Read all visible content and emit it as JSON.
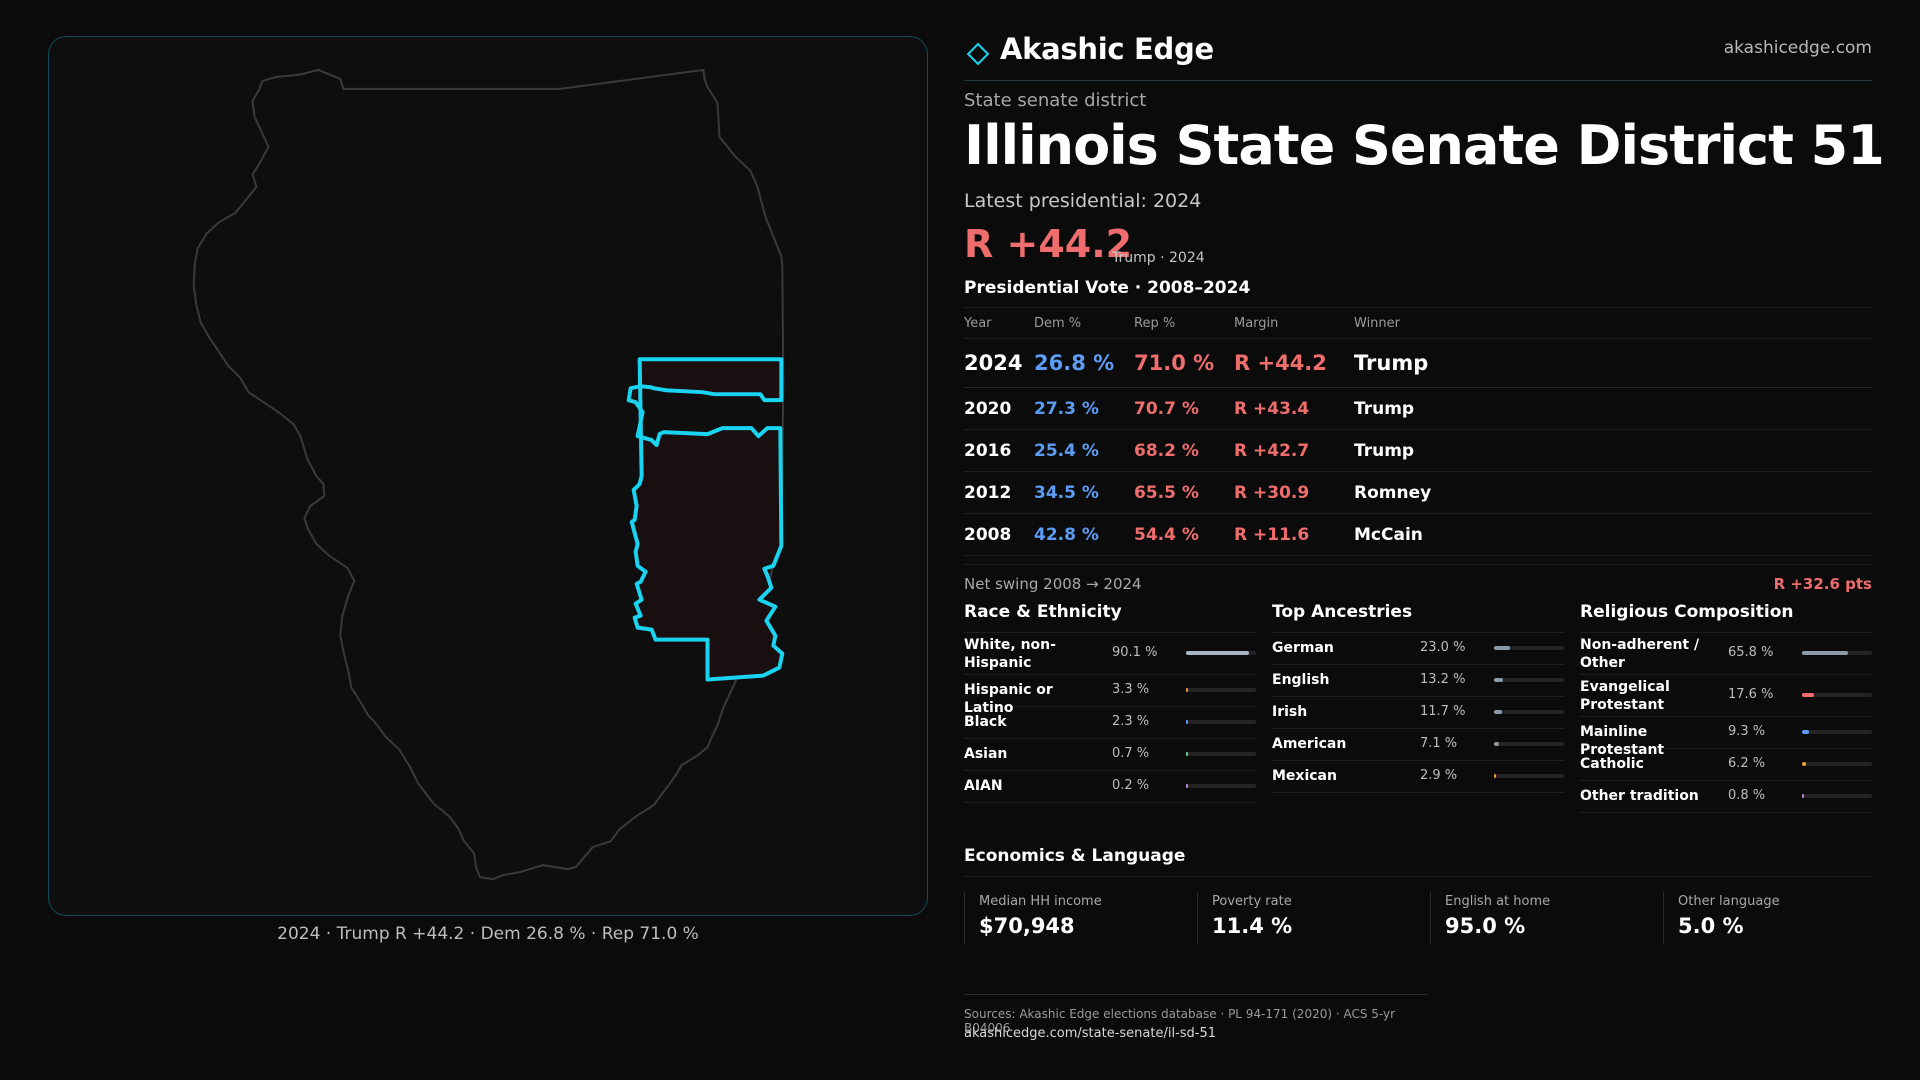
{
  "brand": {
    "name": "Akashic Edge",
    "url": "akashicedge.com",
    "accent": "#19d3f0"
  },
  "header": {
    "kicker": "State senate district",
    "title": "Illinois State Senate District 51",
    "latest_label": "Latest presidential: 2024",
    "margin": "R +44.2",
    "margin_note": "Trump · 2024"
  },
  "map": {
    "caption": "2024 · Trump R +44.2 · Dem 26.8 % · Rep 71.0 %"
  },
  "presidential": {
    "title": "Presidential Vote · 2008–2024",
    "columns": [
      "Year",
      "Dem %",
      "Rep %",
      "Margin",
      "Winner"
    ],
    "rows": [
      {
        "year": "2024",
        "dem": "26.8 %",
        "rep": "71.0 %",
        "margin": "R +44.2",
        "winner": "Trump"
      },
      {
        "year": "2020",
        "dem": "27.3 %",
        "rep": "70.7 %",
        "margin": "R +43.4",
        "winner": "Trump"
      },
      {
        "year": "2016",
        "dem": "25.4 %",
        "rep": "68.2 %",
        "margin": "R +42.7",
        "winner": "Trump"
      },
      {
        "year": "2012",
        "dem": "34.5 %",
        "rep": "65.5 %",
        "margin": "R +30.9",
        "winner": "Romney"
      },
      {
        "year": "2008",
        "dem": "42.8 %",
        "rep": "54.4 %",
        "margin": "R +11.6",
        "winner": "McCain"
      }
    ],
    "swing_label": "Net swing 2008 → 2024",
    "swing_value": "R +32.6 pts"
  },
  "race": {
    "title": "Race & Ethnicity",
    "items": [
      {
        "label": "White, non-Hispanic",
        "pct": "90.1 %",
        "value": 90.1,
        "color": "#a9b6c6"
      },
      {
        "label": "Hispanic or Latino",
        "pct": "3.3 %",
        "value": 3.3,
        "color": "#e8953a"
      },
      {
        "label": "Black",
        "pct": "2.3 %",
        "value": 2.3,
        "color": "#5b9cf5"
      },
      {
        "label": "Asian",
        "pct": "0.7 %",
        "value": 0.7,
        "color": "#6fd18a"
      },
      {
        "label": "AIAN",
        "pct": "0.2 %",
        "value": 0.2,
        "color": "#b58be6"
      }
    ]
  },
  "ancestry": {
    "title": "Top Ancestries",
    "items": [
      {
        "label": "German",
        "pct": "23.0 %",
        "value": 23.0,
        "color": "#8f9aa8"
      },
      {
        "label": "English",
        "pct": "13.2 %",
        "value": 13.2,
        "color": "#8f9aa8"
      },
      {
        "label": "Irish",
        "pct": "11.7 %",
        "value": 11.7,
        "color": "#8f9aa8"
      },
      {
        "label": "American",
        "pct": "7.1 %",
        "value": 7.1,
        "color": "#8f9aa8"
      },
      {
        "label": "Mexican",
        "pct": "2.9 %",
        "value": 2.9,
        "color": "#e8a53a"
      }
    ]
  },
  "religion": {
    "title": "Religious Composition",
    "items": [
      {
        "label": "Non-adherent / Other",
        "pct": "65.8 %",
        "value": 65.8,
        "color": "#8f9aa8"
      },
      {
        "label": "Evangelical Protestant",
        "pct": "17.6 %",
        "value": 17.6,
        "color": "#ef6d6d"
      },
      {
        "label": "Mainline Protestant",
        "pct": "9.3 %",
        "value": 9.3,
        "color": "#5b9cf5"
      },
      {
        "label": "Catholic",
        "pct": "6.2 %",
        "value": 6.2,
        "color": "#e8a53a"
      },
      {
        "label": "Other tradition",
        "pct": "0.8 %",
        "value": 0.8,
        "color": "#b58be6"
      }
    ]
  },
  "economics": {
    "title": "Economics & Language",
    "items": [
      {
        "label": "Median HH income",
        "value": "$70,948"
      },
      {
        "label": "Poverty rate",
        "value": "11.4 %"
      },
      {
        "label": "English at home",
        "value": "95.0 %"
      },
      {
        "label": "Other language",
        "value": "5.0 %"
      }
    ]
  },
  "footer": {
    "sources": "Sources: Akashic Edge elections database · PL 94-171 (2020) · ACS 5-yr B04006",
    "url": "akashicedge.com/state-senate/il-sd-51"
  }
}
